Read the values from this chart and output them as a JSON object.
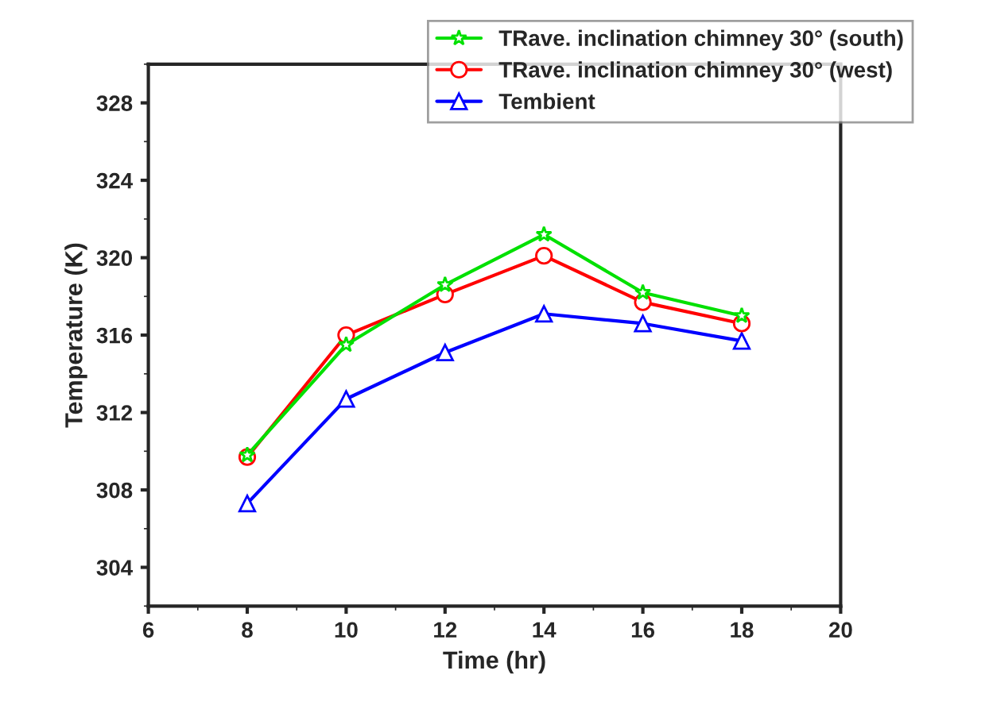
{
  "chart_data": {
    "type": "line",
    "xlabel": "Time (hr)",
    "ylabel": "Temperature (K)",
    "x": [
      8,
      10,
      12,
      14,
      16,
      18
    ],
    "series": [
      {
        "name": "TRave. inclination chimney 30° (south)",
        "color": "#00e000",
        "marker": "star",
        "values": [
          309.8,
          315.5,
          318.6,
          321.2,
          318.2,
          317.0
        ]
      },
      {
        "name": "TRave. inclination chimney 30° (west)",
        "color": "#ff0000",
        "marker": "circle",
        "values": [
          309.7,
          316.0,
          318.1,
          320.1,
          317.7,
          316.6
        ]
      },
      {
        "name": "Tembient",
        "color": "#0000ff",
        "marker": "triangle",
        "values": [
          307.3,
          312.7,
          315.1,
          317.1,
          316.6,
          315.7
        ]
      }
    ],
    "xlim": [
      6,
      20
    ],
    "xticks": [
      6,
      8,
      10,
      12,
      14,
      16,
      18,
      20
    ],
    "ylim": [
      302,
      330
    ],
    "yticks": [
      304,
      308,
      312,
      316,
      320,
      324,
      328
    ],
    "grid": false,
    "legend": "top right",
    "line_style": "solid"
  }
}
